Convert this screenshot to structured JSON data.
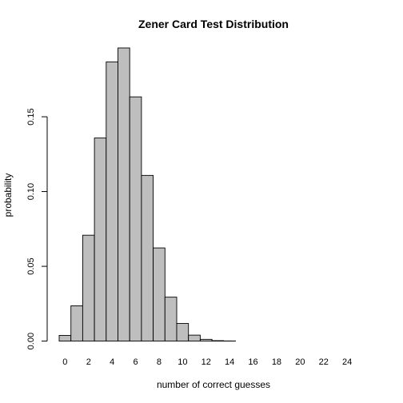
{
  "chart_data": {
    "type": "bar",
    "title": "Zener Card Test Distribution",
    "xlabel": "number of correct guesses",
    "ylabel": "probability",
    "categories": [
      0,
      1,
      2,
      3,
      4,
      5,
      6,
      7,
      8,
      9,
      10,
      11,
      12,
      13,
      14,
      15,
      16,
      17,
      18,
      19,
      20,
      21,
      22,
      23,
      24,
      25
    ],
    "values": [
      0.0038,
      0.0236,
      0.0708,
      0.1358,
      0.1867,
      0.196,
      0.1633,
      0.1108,
      0.0623,
      0.0294,
      0.0118,
      0.004,
      0.0012,
      0.0003,
      0.0001,
      0.0,
      0.0,
      0.0,
      0.0,
      0.0,
      0.0,
      0.0,
      0.0,
      0.0,
      0.0,
      0.0
    ],
    "x_tick_labels": [
      "0",
      "2",
      "4",
      "6",
      "8",
      "10",
      "12",
      "14",
      "16",
      "18",
      "20",
      "22",
      "24"
    ],
    "y_ticks": [
      0.0,
      0.05,
      0.1,
      0.15
    ],
    "y_tick_labels": [
      "0.00",
      "0.05",
      "0.10",
      "0.15"
    ],
    "ylim": [
      0,
      0.2
    ],
    "grid": false,
    "bar_color": "#bebebe",
    "edge_color": "#000000"
  }
}
